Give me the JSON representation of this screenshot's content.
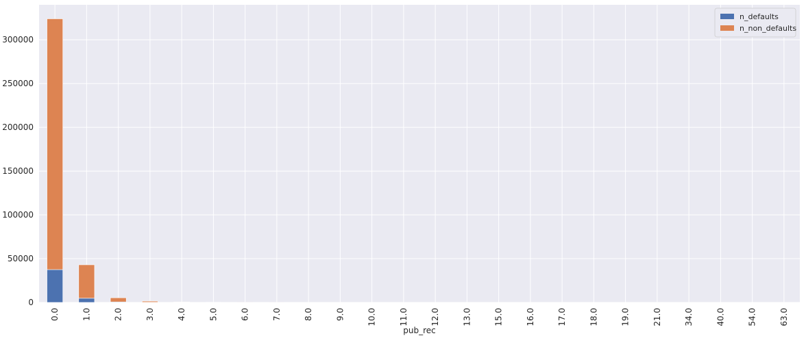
{
  "chart_data": {
    "type": "bar",
    "stacked": true,
    "xlabel": "pub_rec",
    "ylabel": "",
    "ylim": [
      0,
      340000
    ],
    "yticks": [
      0,
      50000,
      100000,
      150000,
      200000,
      250000,
      300000
    ],
    "ytick_labels": [
      "0",
      "50000",
      "100000",
      "150000",
      "200000",
      "250000",
      "300000"
    ],
    "categories": [
      "0.0",
      "1.0",
      "2.0",
      "3.0",
      "4.0",
      "5.0",
      "6.0",
      "7.0",
      "8.0",
      "9.0",
      "10.0",
      "11.0",
      "12.0",
      "13.0",
      "15.0",
      "16.0",
      "17.0",
      "18.0",
      "19.0",
      "21.0",
      "34.0",
      "40.0",
      "54.0",
      "63.0"
    ],
    "series": [
      {
        "name": "n_defaults",
        "color": "#4c72b0",
        "values": [
          37500,
          4800,
          600,
          160,
          50,
          20,
          8,
          3,
          2,
          1,
          1,
          0,
          0,
          0,
          0,
          0,
          0,
          0,
          0,
          0,
          0,
          0,
          0,
          0
        ]
      },
      {
        "name": "n_non_defaults",
        "color": "#dd8452",
        "values": [
          286500,
          38200,
          4700,
          1300,
          460,
          190,
          80,
          40,
          20,
          10,
          6,
          3,
          3,
          2,
          1,
          1,
          1,
          1,
          1,
          1,
          1,
          1,
          1,
          1
        ]
      }
    ],
    "grid": true,
    "legend_position": "top-right",
    "style": {
      "plot_background": "#eaeaf2",
      "grid_color": "#ffffff"
    }
  }
}
